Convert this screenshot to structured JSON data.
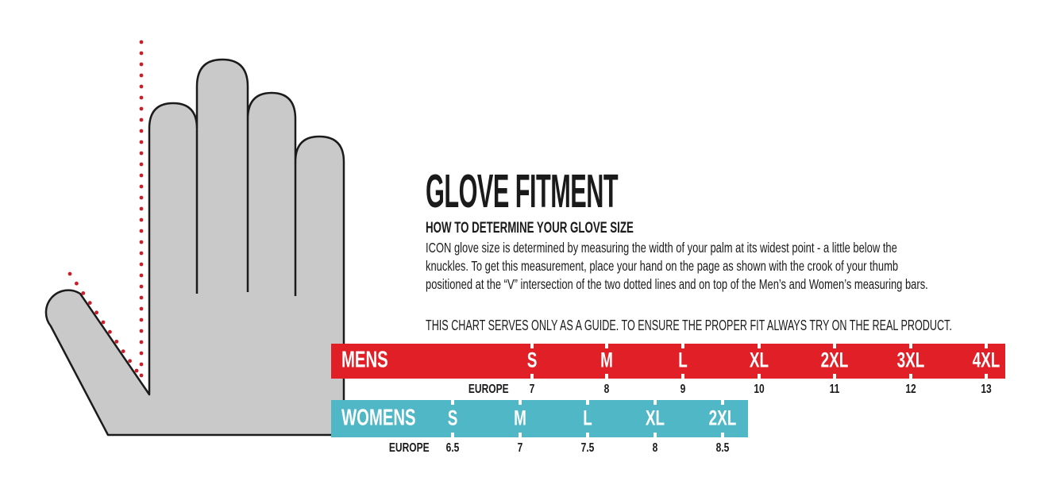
{
  "page": {
    "background": "#ffffff"
  },
  "hand": {
    "description": "gray outlined left-hand illustration with red dotted measuring lines forming a V at the thumb crook",
    "fill": "#C9C9C9",
    "outline": "#1B1B1B",
    "dot_color": "#C8202A"
  },
  "content": {
    "title": "GLOVE FITMENT",
    "subtitle": "HOW TO DETERMINE YOUR GLOVE SIZE",
    "body_lines": [
      "ICON glove size is determined by measuring the width of your palm at its widest point - a little below the",
      "knuckles. To get this measurement, place your hand on the page as shown with the crook of your thumb",
      "positioned at the “V” intersection of the two dotted lines and on top of the Men’s and Women’s measuring bars."
    ],
    "guide_note": "THIS CHART SERVES ONLY AS A GUIDE. TO ENSURE THE PROPER FIT ALWAYS TRY ON THE REAL PRODUCT."
  },
  "chart_data": {
    "type": "table",
    "description": "glove size measuring bars; palm width maps to size",
    "mens": {
      "label": "MENS",
      "bar_color": "#E01F27",
      "sizes": [
        "S",
        "M",
        "L",
        "XL",
        "2XL",
        "3XL",
        "4XL"
      ],
      "europe_label": "EUROPE",
      "europe_values": [
        "7",
        "8",
        "9",
        "10",
        "11",
        "12",
        "13"
      ]
    },
    "womens": {
      "label": "WOMENS",
      "bar_color": "#4FB7C6",
      "sizes": [
        "S",
        "M",
        "L",
        "XL",
        "2XL"
      ],
      "europe_label": "EUROPE",
      "europe_values": [
        "6.5",
        "7",
        "7.5",
        "8",
        "8.5"
      ]
    }
  }
}
